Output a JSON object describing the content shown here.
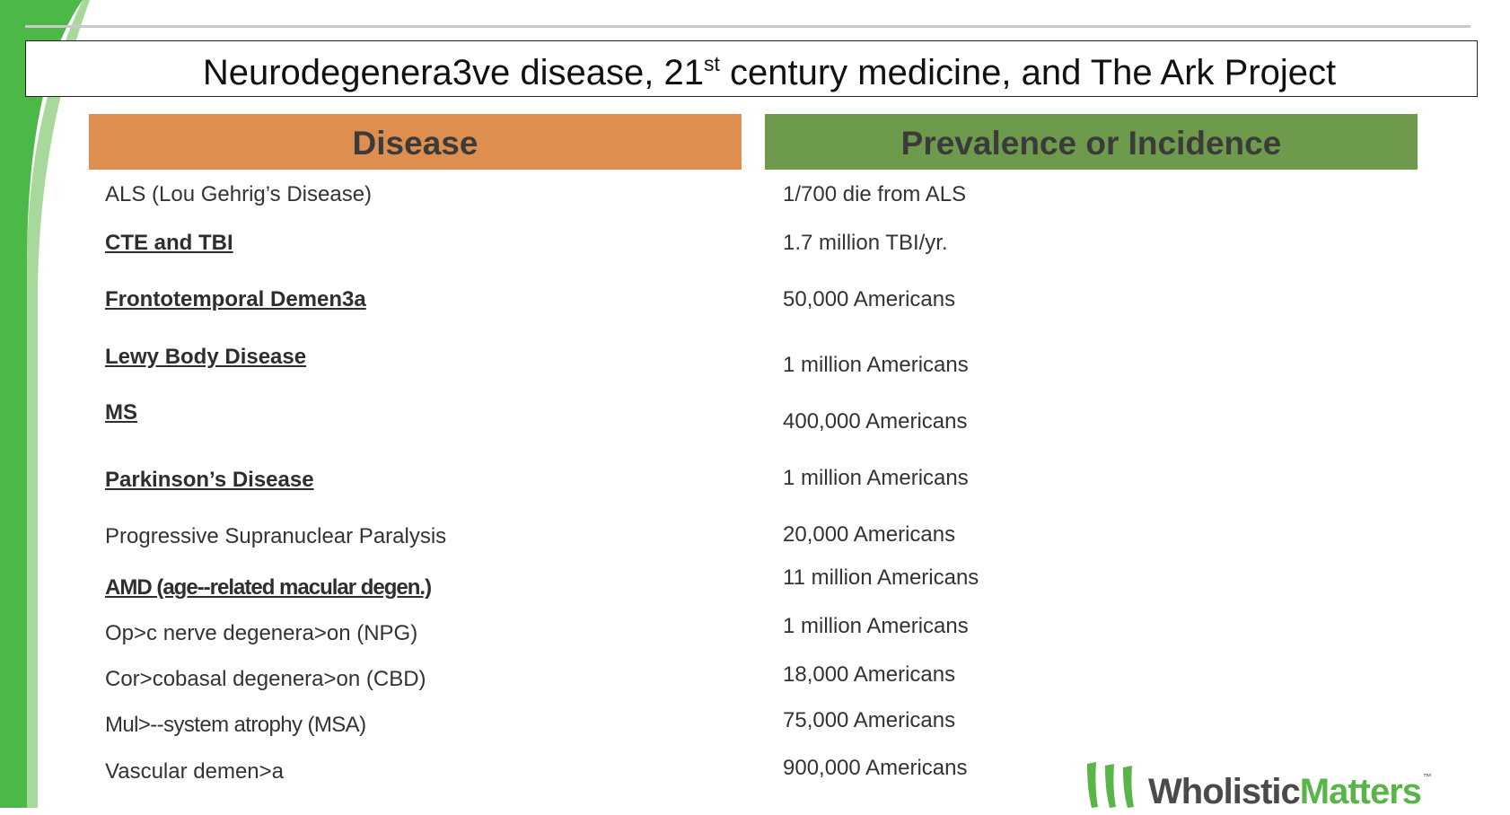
{
  "slide": {
    "title_main": "Neurodegenera3ve disease, 21",
    "title_sup": "st",
    "title_rest": " century medicine, and The Ark Project"
  },
  "table": {
    "headers": {
      "disease": "Disease",
      "prevalence": "Prevalence or Incidence"
    },
    "rows": [
      {
        "disease": "ALS (Lou Gehrig’s Disease)",
        "prevalence": "1/700 die from ALS"
      },
      {
        "disease": "CTE and TBI",
        "prevalence": "1.7 million TBI/yr."
      },
      {
        "disease": "Frontotemporal Demen3a",
        "prevalence": "50,000 Americans"
      },
      {
        "disease": "Lewy Body Disease",
        "prevalence": "1 million Americans"
      },
      {
        "disease": "MS",
        "prevalence": "400,000 Americans"
      },
      {
        "disease": "Parkinson’s Disease",
        "prevalence": "1 million Americans"
      },
      {
        "disease": "Progressive Supranuclear Paralysis",
        "prevalence": "20,000 Americans"
      },
      {
        "disease": "AMD (age‐‐related macular degen.)",
        "prevalence": "11 million Americans"
      },
      {
        "disease": "Op>c nerve degenera>on (NPG)",
        "prevalence": "1 million Americans"
      },
      {
        "disease": "Cor>cobasal degenera>on (CBD)",
        "prevalence": "18,000 Americans"
      },
      {
        "disease": "Mul>‐‐system atrophy (MSA)",
        "prevalence": "75,000 Americans"
      },
      {
        "disease": "Vascular demen>a",
        "prevalence": "900,000 Americans"
      }
    ]
  },
  "logo": {
    "part1": "Wholistic",
    "part2": "Matters",
    "tm": "™"
  },
  "colors": {
    "disease_header": "#de8f4f",
    "prevalence_header": "#6e9a4b",
    "swoosh_green": "#4cb848",
    "logo_green": "#59b548"
  }
}
